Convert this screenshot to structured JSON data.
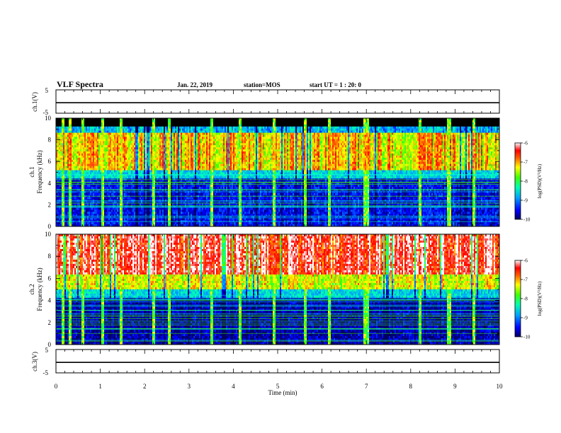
{
  "header": {
    "title": "VLF Spectra",
    "date": "Jan. 22, 2019",
    "station": "station=MOS",
    "start_ut": "start UT =  1 : 20: 0"
  },
  "chart_data": [
    {
      "type": "line",
      "ylabel": "ch.1(V)",
      "ylim": [
        -5,
        5
      ],
      "ytick_labels": [
        "5",
        "-5"
      ],
      "trace_value": -0.5
    },
    {
      "type": "heatmap",
      "ylabel_ch": "ch.1",
      "ylabel": "Frequency (kHz)",
      "ylim": [
        0,
        10
      ],
      "ytick_labels": [
        "0",
        "2",
        "4",
        "6",
        "8",
        "10"
      ],
      "colorbar": {
        "label": "log(PSD)(V²/Hz)",
        "range": [
          -10,
          -6
        ],
        "tick_labels": [
          "-6",
          "-7",
          "-8",
          "-9",
          "-10"
        ]
      }
    },
    {
      "type": "heatmap",
      "ylabel_ch": "ch.2",
      "ylabel": "Frequency (kHz)",
      "ylim": [
        0,
        10
      ],
      "ytick_labels": [
        "0",
        "2",
        "4",
        "6",
        "8",
        "10"
      ],
      "colorbar": {
        "label": "log(PSD)(V²/Hz)",
        "range": [
          -10,
          -6
        ],
        "tick_labels": [
          "-6",
          "-7",
          "-8",
          "-9",
          "-10"
        ]
      }
    },
    {
      "type": "line",
      "ylabel": "ch.3(V)",
      "ylim": [
        -5,
        5
      ],
      "ytick_labels": [
        "5",
        "-5"
      ],
      "trace_value": -0.5
    }
  ],
  "xaxis": {
    "label": "Time (min)",
    "range": [
      0,
      10
    ],
    "tick_labels": [
      "0",
      "1",
      "2",
      "3",
      "4",
      "5",
      "6",
      "7",
      "8",
      "9",
      "10"
    ]
  },
  "colors": {
    "background_band": "#000000",
    "frame": "#000000"
  }
}
